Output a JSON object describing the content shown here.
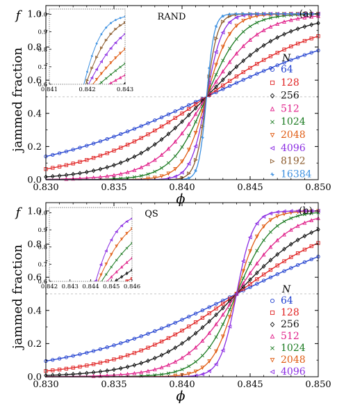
{
  "figure_labels": {
    "ylabel": "jammed fraction",
    "ylabel_symbol": "f",
    "xlabel_symbol": "ϕ"
  },
  "legend": {
    "header": "N"
  },
  "chart_data": [
    {
      "type": "line",
      "panel_label": "(a)",
      "title": "RAND",
      "xlim": [
        0.83,
        0.85
      ],
      "ylim": [
        0.0,
        1.05
      ],
      "xticks": [
        "0.830",
        "0.835",
        "0.840",
        "0.845",
        "0.850"
      ],
      "yticks": [
        "0.0",
        "0.2",
        "0.4",
        "0.6",
        "0.8",
        "1.0"
      ],
      "xtick_values": [
        0.83,
        0.835,
        0.84,
        0.845,
        0.85
      ],
      "ytick_values": [
        0.0,
        0.2,
        0.4,
        0.6,
        0.8,
        1.0
      ],
      "dashed_reference_y": 0.5,
      "grid": false,
      "legend_position": "right",
      "crossing_phi": 0.8418,
      "series": [
        {
          "name": "64",
          "color": "#1f3fcf",
          "marker": "circle",
          "width": 0.0065
        },
        {
          "name": "128",
          "color": "#e02020",
          "marker": "square",
          "width": 0.0044
        },
        {
          "name": "256",
          "color": "#111111",
          "marker": "diamond",
          "width": 0.0029
        },
        {
          "name": "512",
          "color": "#e0208a",
          "marker": "triangle-up",
          "width": 0.0019
        },
        {
          "name": "1024",
          "color": "#1a7a20",
          "marker": "x",
          "width": 0.00128
        },
        {
          "name": "2048",
          "color": "#e05a10",
          "marker": "triangle-down",
          "width": 0.00086
        },
        {
          "name": "4096",
          "color": "#8a2be2",
          "marker": "triangle-left",
          "width": 0.00058
        },
        {
          "name": "8192",
          "color": "#8b5a2b",
          "marker": "triangle-right",
          "width": 0.0004
        },
        {
          "name": "16384",
          "color": "#3a8fe0",
          "marker": "star",
          "width": 0.00028
        }
      ],
      "inset": {
        "xlim": [
          0.841,
          0.843
        ],
        "ylim": [
          0.6,
          1.03
        ],
        "xticks": [
          "0.841",
          "0.842",
          "0.843"
        ],
        "yticks": [
          "0.6",
          "0.7",
          "0.8",
          "0.9",
          "1.0"
        ],
        "xtick_values": [
          0.841,
          0.842,
          0.843
        ],
        "ytick_values": [
          0.6,
          0.7,
          0.8,
          0.9,
          1.0
        ]
      }
    },
    {
      "type": "line",
      "panel_label": "(b)",
      "title": "QS",
      "xlim": [
        0.83,
        0.85
      ],
      "ylim": [
        0.0,
        1.05
      ],
      "xticks": [
        "0.830",
        "0.835",
        "0.840",
        "0.845",
        "0.850"
      ],
      "yticks": [
        "0.0",
        "0.2",
        "0.4",
        "0.6",
        "0.8",
        "1.0"
      ],
      "xtick_values": [
        0.83,
        0.835,
        0.84,
        0.845,
        0.85
      ],
      "ytick_values": [
        0.0,
        0.2,
        0.4,
        0.6,
        0.8,
        1.0
      ],
      "dashed_reference_y": 0.5,
      "grid": false,
      "legend_position": "lower-right",
      "crossing_phi": 0.844,
      "series": [
        {
          "name": "64",
          "color": "#1f3fcf",
          "marker": "circle",
          "width": 0.0062
        },
        {
          "name": "128",
          "color": "#e02020",
          "marker": "square",
          "width": 0.0042
        },
        {
          "name": "256",
          "color": "#111111",
          "marker": "diamond",
          "width": 0.0029
        },
        {
          "name": "512",
          "color": "#e0208a",
          "marker": "triangle-up",
          "width": 0.00195
        },
        {
          "name": "1024",
          "color": "#1a7a20",
          "marker": "x",
          "width": 0.0013
        },
        {
          "name": "2048",
          "color": "#e05a10",
          "marker": "triangle-down",
          "width": 0.00088
        },
        {
          "name": "4096",
          "color": "#8a2be2",
          "marker": "triangle-left",
          "width": 0.0006
        }
      ],
      "inset": {
        "xlim": [
          0.842,
          0.846
        ],
        "ylim": [
          0.6,
          1.03
        ],
        "xticks": [
          "0.842",
          "0.843",
          "0.844",
          "0.845",
          "0.846"
        ],
        "yticks": [
          "0.6",
          "0.7",
          "0.8",
          "0.9",
          "1.0"
        ],
        "xtick_values": [
          0.842,
          0.843,
          0.844,
          0.845,
          0.846
        ],
        "ytick_values": [
          0.6,
          0.7,
          0.8,
          0.9,
          1.0
        ]
      }
    }
  ]
}
